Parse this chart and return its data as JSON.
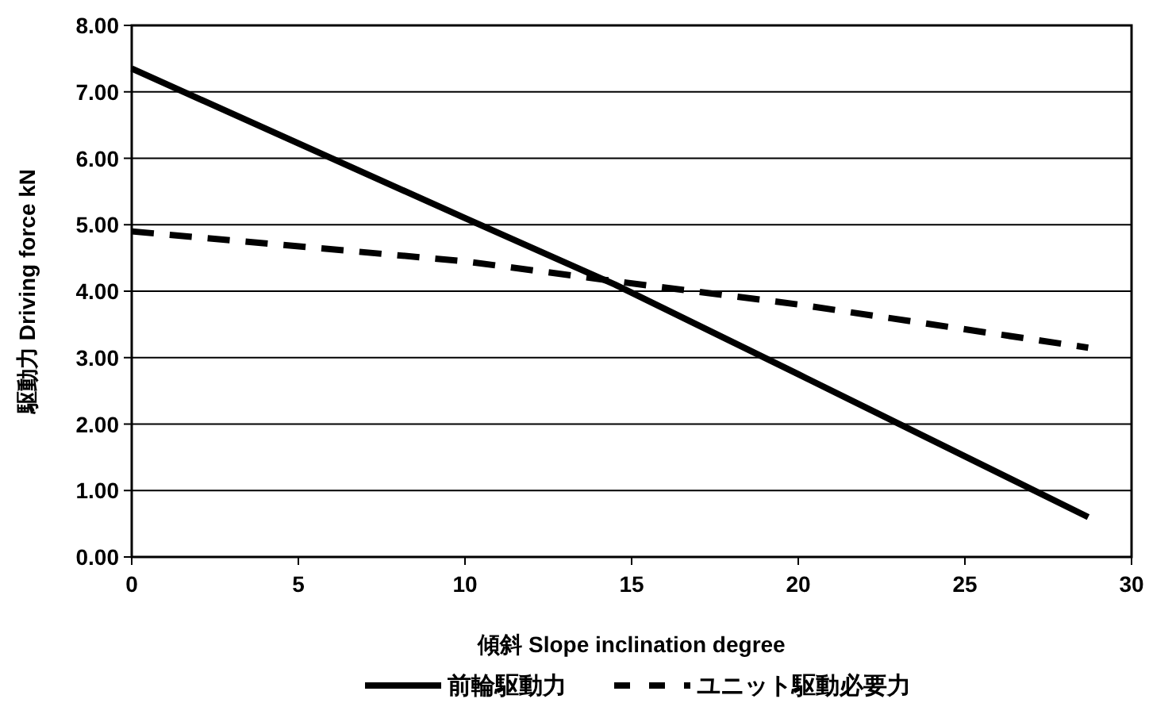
{
  "chart_data": {
    "type": "line",
    "xlabel": "傾斜  Slope inclination   degree",
    "ylabel": "駆動力  Driving force kN",
    "x": [
      0,
      10,
      14.5,
      20,
      28.7
    ],
    "series": [
      {
        "name": "前輪駆動力",
        "color": "#000000",
        "line_style": "solid",
        "values": [
          7.35,
          5.1,
          4.1,
          2.75,
          0.6
        ]
      },
      {
        "name": "ユニット駆動必要力",
        "color": "#000000",
        "line_style": "dashed",
        "values": [
          4.9,
          4.45,
          4.15,
          3.8,
          3.15
        ]
      }
    ],
    "xlim": [
      0,
      30
    ],
    "xticks": [
      0,
      5,
      10,
      15,
      20,
      25,
      30
    ],
    "ylim": [
      0,
      8
    ],
    "yticks": [
      {
        "value": 0,
        "label": "0.00"
      },
      {
        "value": 1,
        "label": "1.00"
      },
      {
        "value": 2,
        "label": "2.00"
      },
      {
        "value": 3,
        "label": "3.00"
      },
      {
        "value": 4,
        "label": "4.00"
      },
      {
        "value": 5,
        "label": "5.00"
      },
      {
        "value": 6,
        "label": "6.00"
      },
      {
        "value": 7,
        "label": "7.00"
      },
      {
        "value": 8,
        "label": "8.00"
      }
    ],
    "grid": "y",
    "legend": "bottom"
  }
}
